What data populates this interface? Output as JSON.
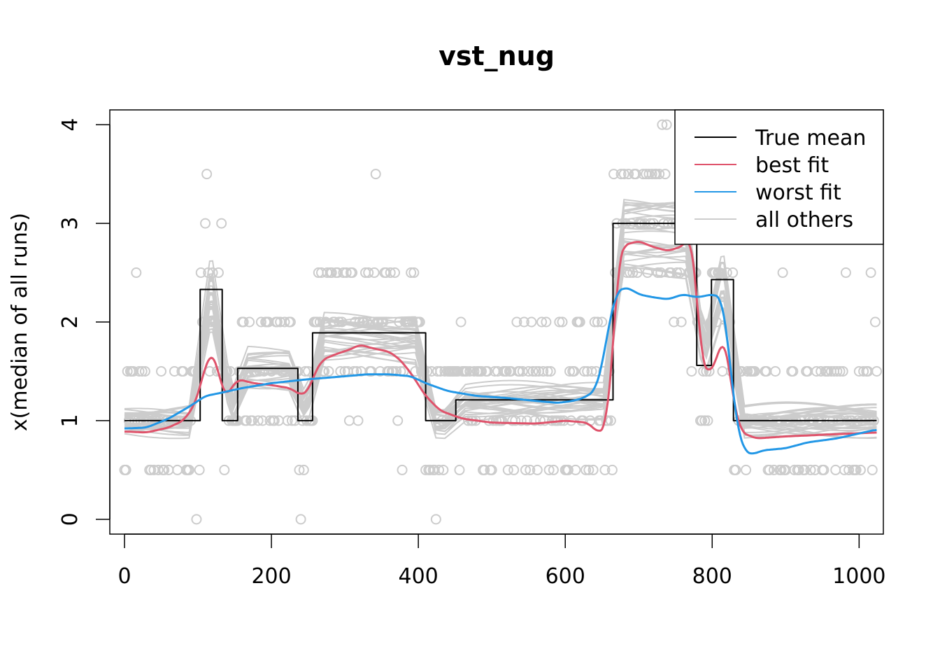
{
  "chart_data": {
    "type": "line",
    "title": "vst_nug",
    "xlabel": "",
    "ylabel": "x(median of all runs)",
    "xlim": [
      -20,
      1033
    ],
    "ylim": [
      -0.15,
      4.15
    ],
    "x_ticks": [
      0,
      200,
      400,
      600,
      800,
      1000
    ],
    "x_tick_labels": [
      "0",
      "200",
      "400",
      "600",
      "800",
      "1000"
    ],
    "y_ticks": [
      0,
      1,
      2,
      3,
      4
    ],
    "y_tick_labels": [
      "0",
      "1",
      "2",
      "3",
      "4"
    ],
    "grid": false,
    "legend": {
      "position": "top-right",
      "entries": [
        {
          "label": "True mean",
          "color": "#000000"
        },
        {
          "label": "best fit",
          "color": "#DF536B"
        },
        {
          "label": "worst fit",
          "color": "#2297E6"
        },
        {
          "label": "all others",
          "color": "#CCCCCC"
        }
      ]
    },
    "series": [
      {
        "name": "True mean",
        "color": "#000000",
        "step": true,
        "x": [
          0,
          103,
          103,
          133,
          133,
          154,
          154,
          236,
          236,
          256,
          256,
          410,
          410,
          451,
          451,
          665,
          665,
          779,
          779,
          799,
          799,
          829,
          829,
          1024
        ],
        "y": [
          1,
          1,
          2.33,
          2.33,
          1,
          1,
          1.53,
          1.53,
          1,
          1,
          1.89,
          1.89,
          1,
          1,
          1.21,
          1.21,
          3,
          3,
          1.56,
          1.56,
          2.43,
          2.43,
          1,
          1
        ]
      },
      {
        "name": "best fit",
        "color": "#DF536B",
        "x": [
          0,
          30,
          60,
          80,
          95,
          105,
          112,
          118,
          125,
          132,
          138,
          145,
          155,
          175,
          200,
          225,
          240,
          250,
          260,
          270,
          290,
          310,
          320,
          340,
          360,
          375,
          390,
          410,
          430,
          460,
          500,
          560,
          600,
          630,
          645,
          655,
          665,
          672,
          680,
          700,
          720,
          740,
          760,
          770,
          778,
          785,
          795,
          805,
          815,
          822,
          830,
          840,
          860,
          900,
          960,
          1024
        ],
        "y": [
          0.89,
          0.88,
          0.93,
          1.0,
          1.15,
          1.4,
          1.6,
          1.68,
          1.6,
          1.35,
          1.24,
          1.33,
          1.42,
          1.38,
          1.36,
          1.33,
          1.26,
          1.3,
          1.5,
          1.62,
          1.68,
          1.73,
          1.77,
          1.73,
          1.7,
          1.62,
          1.48,
          1.25,
          1.1,
          1.02,
          0.98,
          0.97,
          1.0,
          0.98,
          0.88,
          0.92,
          1.7,
          2.6,
          2.78,
          2.82,
          2.76,
          2.72,
          2.77,
          2.88,
          2.4,
          1.62,
          1.47,
          1.6,
          1.85,
          1.6,
          1.15,
          0.88,
          0.82,
          0.84,
          0.86,
          0.88
        ]
      },
      {
        "name": "worst fit",
        "color": "#2297E6",
        "x": [
          0,
          30,
          60,
          90,
          110,
          130,
          160,
          200,
          250,
          300,
          330,
          360,
          390,
          410,
          440,
          480,
          520,
          560,
          590,
          610,
          625,
          640,
          650,
          660,
          670,
          680,
          690,
          700,
          720,
          740,
          760,
          780,
          800,
          812,
          820,
          828,
          835,
          845,
          855,
          870,
          900,
          930,
          970,
          1024
        ],
        "y": [
          0.92,
          0.93,
          1.02,
          1.15,
          1.25,
          1.28,
          1.33,
          1.38,
          1.42,
          1.45,
          1.47,
          1.47,
          1.45,
          1.38,
          1.3,
          1.25,
          1.23,
          1.2,
          1.18,
          1.2,
          1.23,
          1.3,
          1.55,
          2.0,
          2.3,
          2.35,
          2.33,
          2.28,
          2.25,
          2.23,
          2.28,
          2.25,
          2.28,
          2.25,
          1.9,
          1.3,
          0.9,
          0.68,
          0.66,
          0.7,
          0.72,
          0.78,
          0.82,
          0.91
        ]
      }
    ],
    "other_series_count": 28
  }
}
